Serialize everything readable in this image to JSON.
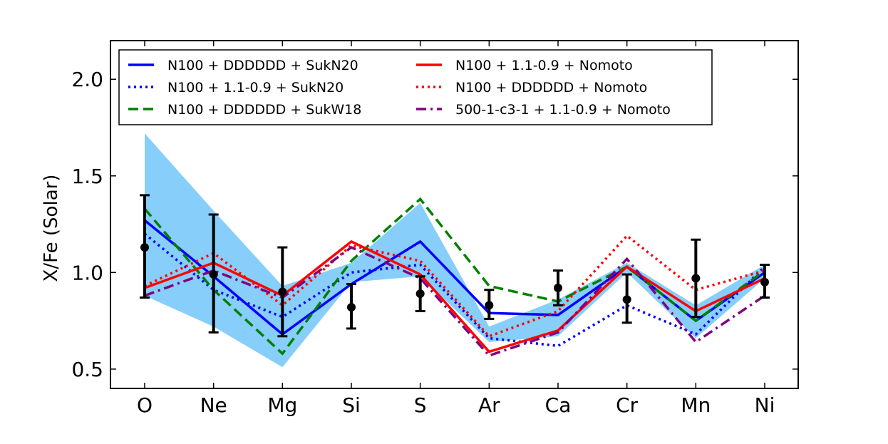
{
  "chart_data": {
    "type": "line",
    "title": "",
    "xlabel": "",
    "ylabel": "X/Fe (Solar)",
    "categories": [
      "O",
      "Ne",
      "Mg",
      "Si",
      "S",
      "Ar",
      "Ca",
      "Cr",
      "Mn",
      "Ni"
    ],
    "ylim": [
      0.4,
      2.2
    ],
    "yticks": [
      0.5,
      1.0,
      1.5,
      2.0
    ],
    "ytick_labels": [
      "0.5",
      "1.0",
      "1.5",
      "2.0"
    ],
    "grid": false,
    "legend_position": "top",
    "band": {
      "color": "#87CEFA",
      "upper": [
        1.72,
        1.32,
        0.93,
        1.05,
        1.36,
        0.72,
        0.86,
        1.05,
        0.83,
        1.04
      ],
      "lower": [
        0.88,
        0.72,
        0.51,
        0.95,
        0.98,
        0.64,
        0.67,
        1.0,
        0.66,
        0.97
      ]
    },
    "observations": {
      "color": "#000000",
      "values": [
        1.13,
        0.99,
        0.9,
        0.82,
        0.89,
        0.83,
        0.92,
        0.86,
        0.97,
        0.95
      ],
      "error_upper": [
        1.4,
        1.3,
        1.13,
        0.94,
        0.98,
        0.91,
        1.01,
        0.99,
        1.17,
        1.04
      ],
      "error_lower": [
        0.87,
        0.69,
        0.67,
        0.71,
        0.8,
        0.76,
        0.83,
        0.74,
        0.77,
        0.87
      ]
    },
    "series": [
      {
        "name": "N100 + DDDDDD + SukN20",
        "color": "#0000FF",
        "style": "solid",
        "values": [
          1.27,
          0.98,
          0.68,
          0.94,
          1.16,
          0.79,
          0.78,
          1.03,
          0.75,
          1.0
        ]
      },
      {
        "name": "N100 + 1.1-0.9 + SukN20",
        "color": "#0000FF",
        "style": "dotted",
        "values": [
          1.2,
          0.91,
          0.77,
          1.0,
          1.04,
          0.66,
          0.62,
          0.83,
          0.68,
          1.03
        ]
      },
      {
        "name": "N100 + DDDDDD + SukW18",
        "color": "#008000",
        "style": "dashed",
        "values": [
          1.33,
          0.91,
          0.58,
          1.06,
          1.38,
          0.93,
          0.85,
          1.03,
          0.75,
          1.01
        ]
      },
      {
        "name": "N100 + 1.1-0.9 + Nomoto",
        "color": "#FF0000",
        "style": "solid",
        "values": [
          0.92,
          1.05,
          0.88,
          1.16,
          0.99,
          0.59,
          0.7,
          1.03,
          0.8,
          0.97
        ]
      },
      {
        "name": "N100 + DDDDDD + Nomoto",
        "color": "#FF0000",
        "style": "dotted",
        "values": [
          0.93,
          1.1,
          0.83,
          1.14,
          1.06,
          0.67,
          0.8,
          1.19,
          0.91,
          1.01
        ]
      },
      {
        "name": "500-1-c3-1 + 1.1-0.9 + Nomoto",
        "color": "#800080",
        "style": "dashdot",
        "values": [
          0.88,
          1.01,
          0.87,
          1.13,
          0.97,
          0.57,
          0.69,
          1.07,
          0.64,
          0.88
        ]
      }
    ]
  }
}
